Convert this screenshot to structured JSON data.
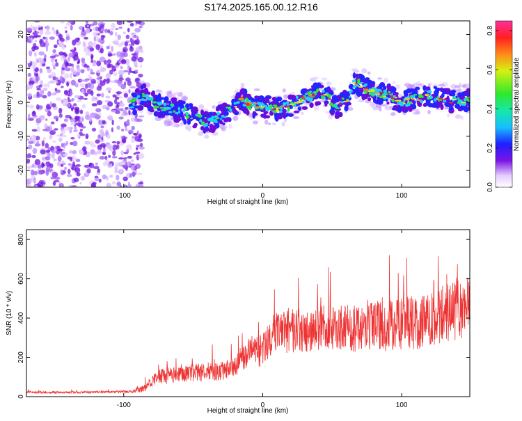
{
  "title": "S174.2025.165.00.12.R16",
  "colors": {
    "snr_line": "#ee3333",
    "spectrum_purple": "#6a0ddb",
    "spectrum_blue": "#2424ff",
    "spectrum_cyan": "#19d2ff",
    "spectrum_green": "#2ee82e",
    "spectrum_red": "#e8332b"
  },
  "chart_data": [
    {
      "type": "heatmap",
      "name": "spectrogram",
      "xlabel": "Height of straight line (km)",
      "ylabel": "Frequency (Hz)",
      "xlim": [
        -170,
        149
      ],
      "ylim": [
        -25,
        24
      ],
      "xticks": [
        -100,
        0,
        100
      ],
      "xtick_labels": [
        "-100",
        "0",
        "100"
      ],
      "yticks": [
        -20,
        -10,
        0,
        10,
        20
      ],
      "ytick_labels": [
        "-20",
        "-10",
        "0",
        "10",
        "20"
      ],
      "grid": false,
      "noise_region_x": [
        -170,
        -87
      ],
      "signal_ridge": {
        "x": [
          -95,
          -85,
          -75,
          -65,
          -55,
          -45,
          -38,
          -30,
          -22,
          -15,
          -8,
          0,
          10,
          20,
          28,
          35,
          42,
          48,
          53,
          58,
          62,
          66,
          70,
          80,
          90,
          100,
          110,
          120,
          130,
          140,
          149
        ],
        "frequency_hz": [
          -1,
          2,
          -1,
          -2,
          -3,
          -5,
          -6,
          -4,
          -2,
          1,
          -1,
          -1,
          -2,
          -1,
          1,
          2,
          3,
          1,
          -2,
          0,
          1,
          6,
          5,
          3,
          2,
          0,
          1,
          2,
          1,
          0,
          1
        ]
      },
      "colorbar": {
        "label": "Normalized spectral amplitude",
        "range": [
          0,
          0.85
        ],
        "ticks": [
          0.0,
          0.2,
          0.4,
          0.6,
          0.8
        ],
        "tick_labels": [
          "0.0",
          "0.2",
          "0.4",
          "0.6",
          "0.8"
        ],
        "colormap": "rainbow (white, purple, blue, cyan, green, yellow, red, magenta)"
      }
    },
    {
      "type": "line",
      "name": "snr",
      "xlabel": "Height of straight line (km)",
      "ylabel": "SNR (10 * v/v)",
      "xlim": [
        -170,
        149
      ],
      "ylim": [
        0,
        850
      ],
      "xticks": [
        -100,
        0,
        100
      ],
      "xtick_labels": [
        "-100",
        "0",
        "100"
      ],
      "yticks": [
        0,
        200,
        400,
        600,
        800
      ],
      "ytick_labels": [
        "0",
        "200",
        "400",
        "600",
        "800"
      ],
      "grid": false,
      "series": [
        {
          "x": [
            -170,
            -150,
            -130,
            -110,
            -95,
            -85,
            -80,
            -75,
            -70,
            -60,
            -50,
            -40,
            -30,
            -20,
            -15,
            -10,
            -5,
            0,
            5,
            10,
            15,
            20,
            30,
            40,
            50,
            60,
            70,
            80,
            90,
            100,
            110,
            120,
            130,
            140,
            149
          ],
          "values": [
            22,
            22,
            22,
            24,
            26,
            40,
            80,
            100,
            105,
            110,
            120,
            125,
            130,
            150,
            200,
            220,
            240,
            230,
            300,
            320,
            330,
            340,
            330,
            350,
            340,
            355,
            345,
            355,
            360,
            365,
            380,
            395,
            420,
            440,
            455
          ],
          "spread": [
            8,
            8,
            8,
            8,
            10,
            30,
            50,
            60,
            60,
            60,
            65,
            70,
            75,
            80,
            100,
            110,
            120,
            130,
            150,
            155,
            160,
            165,
            165,
            170,
            170,
            175,
            180,
            185,
            190,
            195,
            200,
            205,
            210,
            215,
            220
          ]
        }
      ]
    }
  ]
}
